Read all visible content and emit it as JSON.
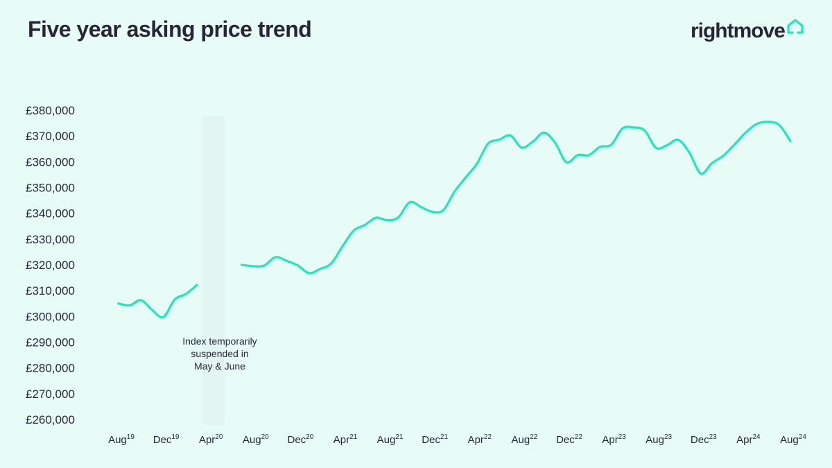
{
  "header": {
    "title": "Five year asking price trend",
    "brand": "rightmove",
    "brand_icon": "house-outline-icon"
  },
  "colors": {
    "background": "#e8fcf7",
    "line": "#1de9b6",
    "text": "#262637",
    "shade": "#e2f5f1"
  },
  "chart_data": {
    "type": "line",
    "title": "Five year asking price trend",
    "xlabel": "",
    "ylabel": "",
    "ylim": [
      260000,
      380000
    ],
    "yticks": [
      {
        "value": 380000,
        "label": "£380,000"
      },
      {
        "value": 370000,
        "label": "£370,000"
      },
      {
        "value": 360000,
        "label": "£360,000"
      },
      {
        "value": 350000,
        "label": "£350,000"
      },
      {
        "value": 340000,
        "label": "£340,000"
      },
      {
        "value": 330000,
        "label": "£330,000"
      },
      {
        "value": 320000,
        "label": "£320,000"
      },
      {
        "value": 310000,
        "label": "£310,000"
      },
      {
        "value": 300000,
        "label": "£300,000"
      },
      {
        "value": 290000,
        "label": "£290,000"
      },
      {
        "value": 280000,
        "label": "£280,000"
      },
      {
        "value": 270000,
        "label": "£270,000"
      },
      {
        "value": 260000,
        "label": "£260,000"
      }
    ],
    "xticks": [
      {
        "month": "Aug",
        "year": "19"
      },
      {
        "month": "Dec",
        "year": "19"
      },
      {
        "month": "Apr",
        "year": "20"
      },
      {
        "month": "Aug",
        "year": "20"
      },
      {
        "month": "Dec",
        "year": "20"
      },
      {
        "month": "Apr",
        "year": "21"
      },
      {
        "month": "Aug",
        "year": "21"
      },
      {
        "month": "Dec",
        "year": "21"
      },
      {
        "month": "Apr",
        "year": "22"
      },
      {
        "month": "Aug",
        "year": "22"
      },
      {
        "month": "Dec",
        "year": "22"
      },
      {
        "month": "Apr",
        "year": "23"
      },
      {
        "month": "Aug",
        "year": "23"
      },
      {
        "month": "Dec",
        "year": "23"
      },
      {
        "month": "Apr",
        "year": "24"
      },
      {
        "month": "Aug",
        "year": "24"
      }
    ],
    "gap_period": {
      "from": "Apr 20",
      "to": "Jul 20"
    },
    "annotation": [
      "Index temporarily",
      "suspended in",
      "May & June"
    ],
    "series": [
      {
        "segments": [
          [
            {
              "x": "Aug 19",
              "y": 305000
            },
            {
              "x": "Sep 19",
              "y": 304300
            },
            {
              "x": "Oct 19",
              "y": 306300
            },
            {
              "x": "Nov 19",
              "y": 302500
            },
            {
              "x": "Dec 19",
              "y": 299700
            },
            {
              "x": "Jan 20",
              "y": 306500
            },
            {
              "x": "Feb 20",
              "y": 308700
            },
            {
              "x": "Mar 20",
              "y": 312200
            }
          ],
          [
            {
              "x": "Jul 20",
              "y": 320000
            },
            {
              "x": "Aug 20",
              "y": 319500
            },
            {
              "x": "Sep 20",
              "y": 319700
            },
            {
              "x": "Oct 20",
              "y": 323000
            },
            {
              "x": "Nov 20",
              "y": 321600
            },
            {
              "x": "Dec 20",
              "y": 319800
            },
            {
              "x": "Jan 21",
              "y": 316800
            },
            {
              "x": "Feb 21",
              "y": 318400
            },
            {
              "x": "Mar 21",
              "y": 320600
            },
            {
              "x": "Apr 21",
              "y": 327200
            },
            {
              "x": "May 21",
              "y": 333300
            },
            {
              "x": "Jun 21",
              "y": 335500
            },
            {
              "x": "Jul 21",
              "y": 338300
            },
            {
              "x": "Aug 21",
              "y": 337300
            },
            {
              "x": "Sep 21",
              "y": 338500
            },
            {
              "x": "Oct 21",
              "y": 344300
            },
            {
              "x": "Nov 21",
              "y": 342500
            },
            {
              "x": "Dec 21",
              "y": 340600
            },
            {
              "x": "Jan 22",
              "y": 341200
            },
            {
              "x": "Feb 22",
              "y": 348400
            },
            {
              "x": "Mar 22",
              "y": 353900
            },
            {
              "x": "Apr 22",
              "y": 359200
            },
            {
              "x": "May 22",
              "y": 367000
            },
            {
              "x": "Jun 22",
              "y": 368600
            },
            {
              "x": "Jul 22",
              "y": 370200
            },
            {
              "x": "Aug 22",
              "y": 365500
            },
            {
              "x": "Sep 22",
              "y": 367800
            },
            {
              "x": "Oct 22",
              "y": 371300
            },
            {
              "x": "Nov 22",
              "y": 367300
            },
            {
              "x": "Dec 22",
              "y": 359800
            },
            {
              "x": "Jan 23",
              "y": 362600
            },
            {
              "x": "Feb 23",
              "y": 362600
            },
            {
              "x": "Mar 23",
              "y": 365800
            },
            {
              "x": "Apr 23",
              "y": 366600
            },
            {
              "x": "May 23",
              "y": 372900
            },
            {
              "x": "Jun 23",
              "y": 373300
            },
            {
              "x": "Jul 23",
              "y": 372100
            },
            {
              "x": "Aug 23",
              "y": 365400
            },
            {
              "x": "Sep 23",
              "y": 366500
            },
            {
              "x": "Oct 23",
              "y": 368500
            },
            {
              "x": "Nov 23",
              "y": 363400
            },
            {
              "x": "Dec 23",
              "y": 355400
            },
            {
              "x": "Jan 24",
              "y": 359500
            },
            {
              "x": "Feb 24",
              "y": 362300
            },
            {
              "x": "Mar 24",
              "y": 366700
            },
            {
              "x": "Apr 24",
              "y": 371300
            },
            {
              "x": "May 24",
              "y": 374700
            },
            {
              "x": "Jun 24",
              "y": 375500
            },
            {
              "x": "Jul 24",
              "y": 374300
            },
            {
              "x": "Aug 24",
              "y": 368000
            }
          ]
        ]
      }
    ],
    "grid": false,
    "legend": "none"
  }
}
